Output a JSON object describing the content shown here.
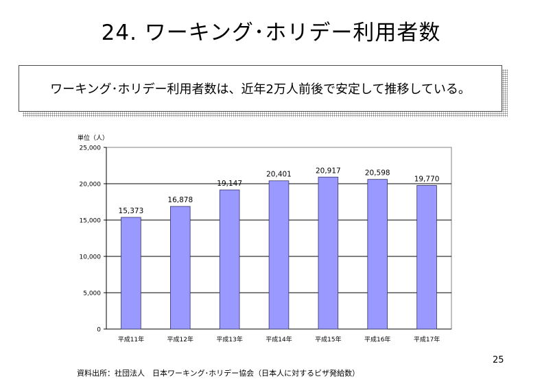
{
  "slide": {
    "title": "24. ワーキング･ホリデー利用者数",
    "callout": "ワーキング･ホリデー利用者数は、近年2万人前後で安定して推移している。",
    "source": "資料出所：社団法人　日本ワーキング･ホリデー協会（日本人に対するビザ発給数）",
    "page_number": "25"
  },
  "chart_data": {
    "type": "bar",
    "unit_label": "単位（人）",
    "categories": [
      "平成11年",
      "平成12年",
      "平成13年",
      "平成14年",
      "平成15年",
      "平成16年",
      "平成17年"
    ],
    "values": [
      15373,
      16878,
      19147,
      20401,
      20917,
      20598,
      19770
    ],
    "value_labels": [
      "15,373",
      "16,878",
      "19,147",
      "20,401",
      "20,917",
      "20,598",
      "19,770"
    ],
    "ylim": [
      0,
      25000
    ],
    "yticks": [
      0,
      5000,
      10000,
      15000,
      20000,
      25000
    ],
    "ytick_labels": [
      "0",
      "5,000",
      "10,000",
      "15,000",
      "20,000",
      "25,000"
    ],
    "grid": true,
    "colors": {
      "bar": "#9999ff",
      "bar_edge": "#333366",
      "grid": "#000000"
    }
  }
}
